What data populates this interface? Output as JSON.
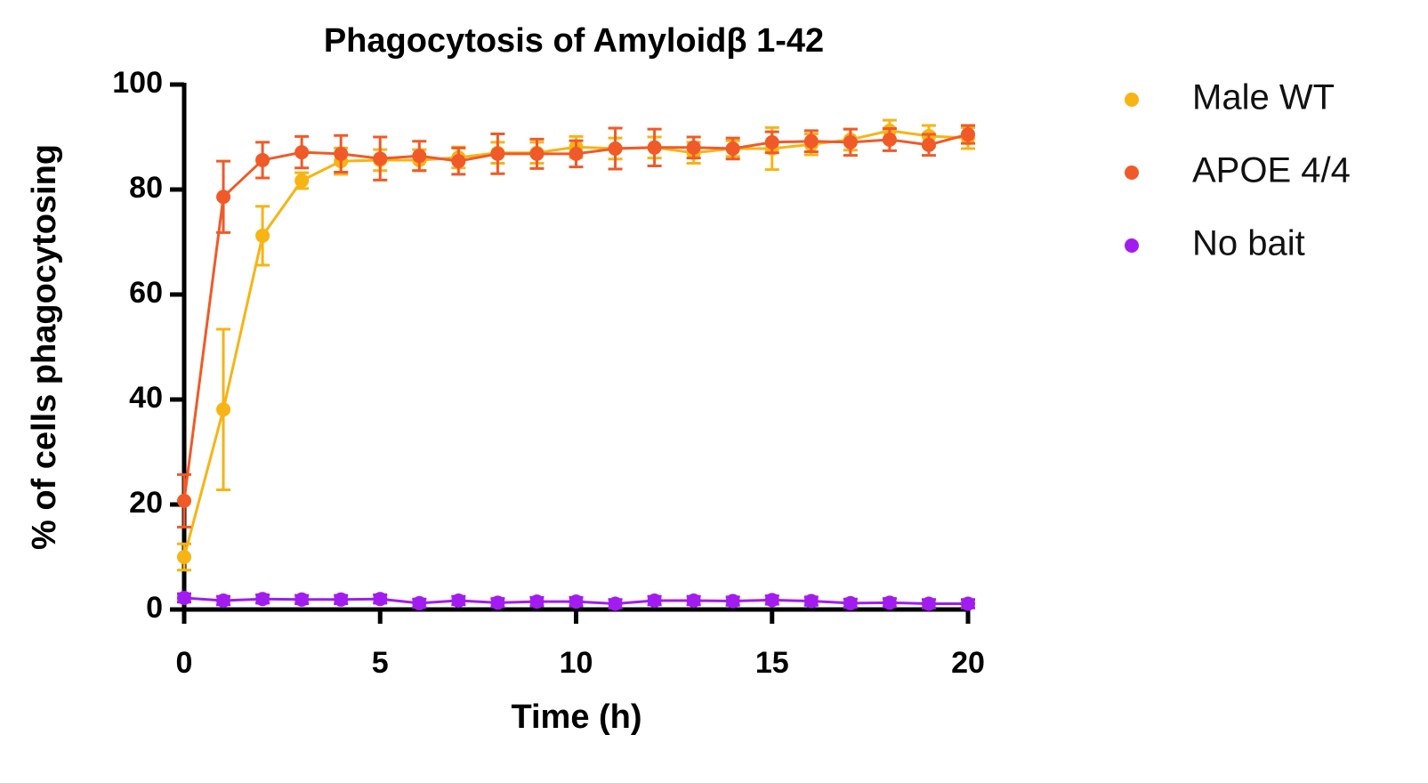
{
  "chart_data": {
    "type": "line",
    "title": "Phagocytosis of Amyloidβ 1-42",
    "x_label": "Time (h)",
    "y_label": "% of cells phagocytosing",
    "x": [
      0,
      1,
      2,
      3,
      4,
      5,
      6,
      7,
      8,
      9,
      10,
      11,
      12,
      13,
      14,
      15,
      16,
      17,
      18,
      19,
      20
    ],
    "series": [
      {
        "name": "Male WT",
        "color": "#F7B414",
        "values": [
          10.0,
          38.1,
          71.2,
          81.7,
          85.4,
          85.6,
          85.6,
          86.1,
          87.0,
          87.0,
          88.1,
          87.8,
          88.0,
          87.0,
          87.8,
          87.8,
          88.6,
          89.5,
          91.2,
          90.2,
          89.8
        ],
        "errors": [
          2.5,
          15.3,
          5.6,
          1.5,
          2.5,
          2.0,
          2.0,
          2.0,
          2.0,
          2.0,
          2.0,
          2.0,
          2.0,
          2.0,
          1.5,
          4.0,
          2.0,
          2.0,
          2.0,
          2.0,
          2.0
        ]
      },
      {
        "name": "APOE 4/4",
        "color": "#F05A28",
        "values": [
          20.7,
          78.6,
          85.6,
          87.1,
          86.8,
          85.9,
          86.4,
          85.4,
          86.8,
          86.8,
          86.8,
          87.8,
          88.0,
          88.0,
          87.8,
          89.0,
          89.2,
          89.0,
          89.5,
          88.5,
          90.5
        ],
        "errors": [
          5.0,
          6.8,
          3.4,
          3.0,
          3.5,
          4.1,
          2.8,
          2.5,
          3.8,
          2.8,
          2.5,
          3.9,
          3.5,
          2.0,
          2.0,
          2.0,
          2.0,
          2.5,
          2.1,
          2.0,
          1.7
        ]
      },
      {
        "name": "No bait",
        "color": "#A21CF0",
        "values": [
          2.2,
          1.7,
          2.0,
          1.9,
          1.9,
          2.0,
          1.2,
          1.7,
          1.3,
          1.5,
          1.5,
          1.1,
          1.7,
          1.7,
          1.6,
          1.8,
          1.6,
          1.2,
          1.3,
          1.1,
          1.1
        ],
        "errors": [
          0.8,
          0.8,
          0.8,
          0.8,
          0.8,
          0.8,
          0.8,
          0.8,
          0.8,
          0.8,
          0.8,
          0.8,
          0.8,
          0.8,
          0.8,
          0.8,
          0.8,
          0.8,
          0.8,
          0.8,
          0.8
        ]
      }
    ],
    "xlim": [
      0,
      20
    ],
    "xticks": [
      0,
      5,
      10,
      15,
      20
    ],
    "ylim": [
      0,
      100
    ],
    "yticks": [
      0,
      20,
      40,
      60,
      80,
      100
    ],
    "legend": "right"
  }
}
